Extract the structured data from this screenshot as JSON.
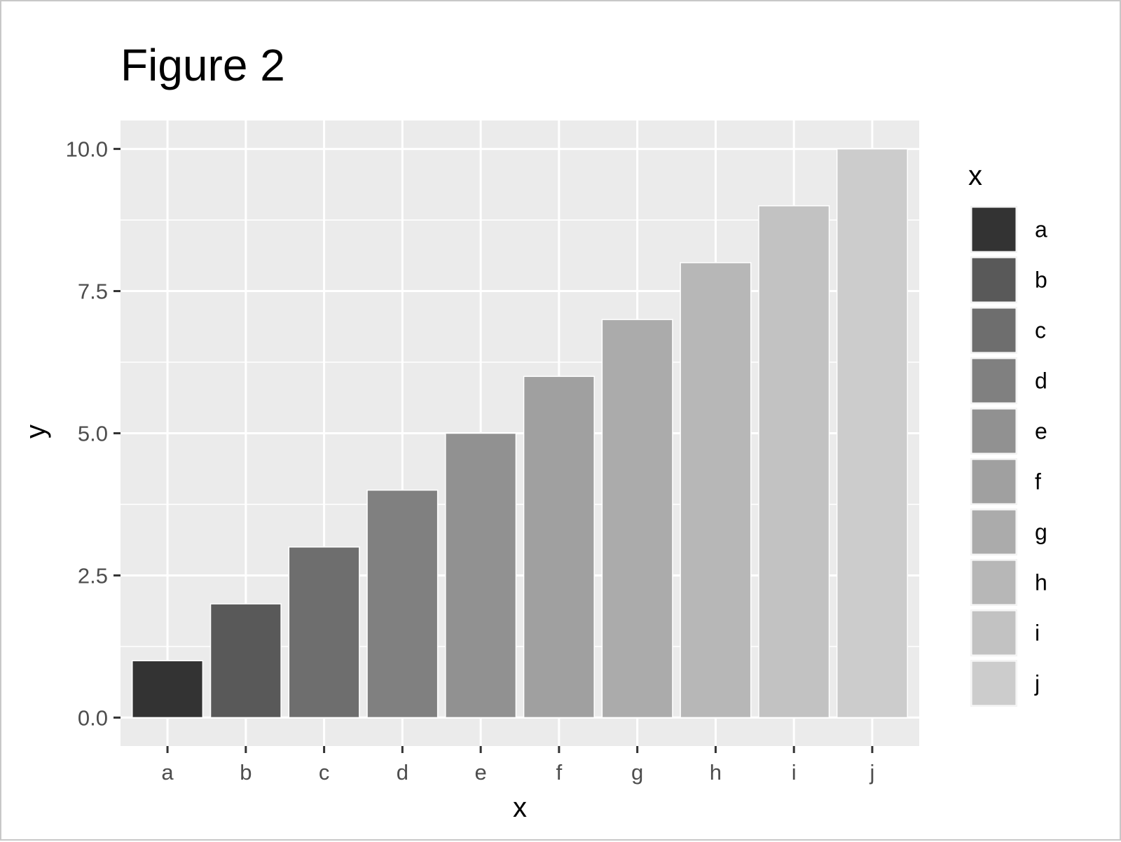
{
  "chart_data": {
    "type": "bar",
    "title": "Figure 2",
    "xlabel": "x",
    "ylabel": "y",
    "categories": [
      "a",
      "b",
      "c",
      "d",
      "e",
      "f",
      "g",
      "h",
      "i",
      "j"
    ],
    "values": [
      1,
      2,
      3,
      4,
      5,
      6,
      7,
      8,
      9,
      10
    ],
    "ylim": [
      -0.5,
      10.5
    ],
    "yticks": [
      0,
      2.5,
      5,
      7.5,
      10
    ],
    "ytick_labels": [
      "0.0",
      "2.5",
      "5.0",
      "7.5",
      "10.0"
    ],
    "bar_colors": [
      "#333333",
      "#595959",
      "#6e6e6e",
      "#808080",
      "#919191",
      "#a0a0a0",
      "#ababab",
      "#b7b7b7",
      "#c2c2c2",
      "#cccccc"
    ],
    "panel_background": "#ebebeb",
    "grid_color": "#ffffff",
    "grid": true,
    "legend": {
      "title": "x",
      "position": "right",
      "entries": [
        "a",
        "b",
        "c",
        "d",
        "e",
        "f",
        "g",
        "h",
        "i",
        "j"
      ]
    }
  }
}
